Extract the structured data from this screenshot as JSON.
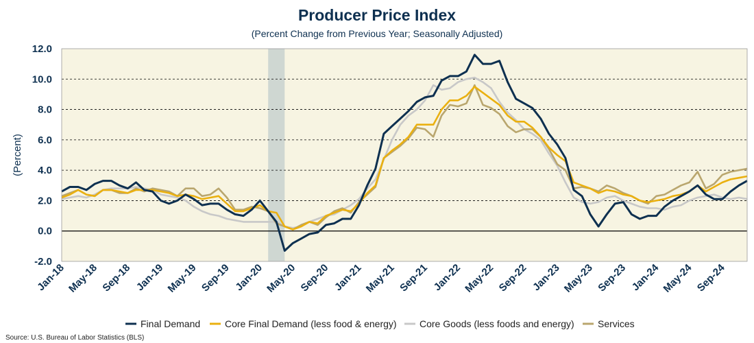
{
  "chart_data": {
    "type": "line",
    "title": "Producer Price Index",
    "subtitle": "(Percent Change from Previous Year; Seasonally Adjusted)",
    "ylabel": "(Percent)",
    "xlabel": "",
    "ylim": [
      -2.0,
      12.0
    ],
    "yticks": [
      "-2.0",
      "0.0",
      "2.0",
      "4.0",
      "6.0",
      "8.0",
      "10.0",
      "12.0"
    ],
    "x_start": "Jan-18",
    "x_end": "Dec-24",
    "xticks": [
      "Jan-18",
      "May-18",
      "Sep-18",
      "Jan-19",
      "May-19",
      "Sep-19",
      "Jan-20",
      "May-20",
      "Sep-20",
      "Jan-21",
      "May-21",
      "Sep-21",
      "Jan-22",
      "May-22",
      "Sep-22",
      "Jan-23",
      "May-23",
      "Sep-23",
      "Jan-24",
      "May-24",
      "Sep-24"
    ],
    "recession": {
      "start": "Feb-20",
      "end": "Apr-20"
    },
    "grid": "horizontal dashed",
    "legend_position": "bottom",
    "series": [
      {
        "name": "Final Demand",
        "color": "#0e3050",
        "values": [
          2.6,
          2.9,
          2.9,
          2.7,
          3.1,
          3.3,
          3.3,
          3.0,
          2.8,
          3.2,
          2.7,
          2.6,
          2.0,
          1.8,
          2.0,
          2.4,
          2.1,
          1.7,
          1.8,
          1.8,
          1.4,
          1.1,
          1.0,
          1.4,
          2.0,
          1.3,
          0.6,
          -1.3,
          -0.8,
          -0.5,
          -0.2,
          -0.1,
          0.4,
          0.5,
          0.8,
          0.8,
          1.7,
          3.0,
          4.1,
          6.4,
          6.9,
          7.4,
          7.9,
          8.5,
          8.8,
          8.9,
          9.9,
          10.2,
          10.2,
          10.5,
          11.6,
          11.0,
          11.0,
          11.2,
          9.8,
          8.7,
          8.4,
          8.1,
          7.4,
          6.4,
          5.7,
          4.8,
          2.7,
          2.3,
          1.1,
          0.3,
          1.1,
          1.8,
          1.9,
          1.1,
          0.8,
          1.0,
          1.0,
          1.6,
          2.0,
          2.3,
          2.6,
          3.0,
          2.4,
          2.1,
          2.1,
          2.6,
          3.0,
          3.3
        ]
      },
      {
        "name": "Core Final Demand (less food & energy)",
        "color": "#eab010",
        "values": [
          2.2,
          2.4,
          2.7,
          2.4,
          2.3,
          2.7,
          2.7,
          2.6,
          2.5,
          2.7,
          2.7,
          2.7,
          2.6,
          2.5,
          2.3,
          2.4,
          2.3,
          2.1,
          2.2,
          2.3,
          1.8,
          1.3,
          1.3,
          1.5,
          1.7,
          1.3,
          1.2,
          0.3,
          0.1,
          0.3,
          0.6,
          0.5,
          1.0,
          1.2,
          1.4,
          1.3,
          1.8,
          2.5,
          3.0,
          4.8,
          5.3,
          5.7,
          6.2,
          7.0,
          7.0,
          7.0,
          8.0,
          8.6,
          8.6,
          8.9,
          9.5,
          9.1,
          8.7,
          8.3,
          7.6,
          7.2,
          7.2,
          6.8,
          6.2,
          5.5,
          5.0,
          4.6,
          3.2,
          3.0,
          2.8,
          2.5,
          2.7,
          2.6,
          2.4,
          2.3,
          2.0,
          1.9,
          2.0,
          2.1,
          2.3,
          2.4,
          2.6,
          3.0,
          2.6,
          2.9,
          3.2,
          3.4,
          3.5,
          3.6
        ]
      },
      {
        "name": "Core Goods (less foods and energy)",
        "color": "#c8c8c8",
        "values": [
          2.1,
          2.2,
          2.3,
          2.2,
          2.4,
          2.7,
          2.8,
          2.8,
          2.8,
          2.9,
          2.8,
          2.7,
          2.4,
          2.3,
          2.2,
          2.0,
          1.6,
          1.3,
          1.1,
          1.0,
          0.8,
          0.7,
          0.6,
          0.6,
          0.6,
          0.6,
          0.6,
          0.3,
          0.2,
          0.3,
          0.6,
          0.8,
          1.0,
          1.1,
          1.4,
          1.7,
          2.1,
          2.8,
          3.4,
          4.7,
          6.0,
          7.0,
          7.6,
          8.0,
          8.6,
          9.6,
          9.3,
          9.4,
          9.8,
          10.0,
          10.1,
          9.8,
          9.4,
          8.5,
          7.8,
          7.3,
          6.7,
          6.4,
          6.0,
          5.1,
          4.3,
          3.2,
          2.2,
          1.9,
          1.8,
          1.9,
          2.2,
          2.3,
          2.0,
          1.8,
          1.6,
          1.5,
          1.5,
          1.4,
          1.6,
          1.7,
          2.0,
          2.2,
          2.3,
          2.4,
          2.2,
          2.1,
          2.2,
          2.1
        ]
      },
      {
        "name": "Services",
        "color": "#b9a66e",
        "values": [
          2.3,
          2.5,
          2.7,
          2.4,
          2.3,
          2.7,
          2.7,
          2.5,
          2.5,
          2.8,
          2.6,
          2.8,
          2.7,
          2.6,
          2.3,
          2.8,
          2.8,
          2.3,
          2.4,
          2.8,
          2.2,
          1.4,
          1.4,
          1.6,
          1.5,
          1.3,
          0.5,
          0.3,
          0.1,
          0.4,
          0.6,
          0.4,
          0.9,
          1.3,
          1.5,
          1.2,
          1.9,
          2.4,
          2.9,
          4.8,
          5.2,
          5.6,
          6.1,
          6.8,
          6.7,
          6.2,
          7.6,
          8.3,
          8.2,
          8.4,
          9.6,
          8.3,
          8.1,
          7.7,
          6.9,
          6.5,
          6.7,
          6.7,
          6.2,
          5.4,
          4.4,
          4.0,
          2.8,
          2.9,
          2.8,
          2.6,
          3.0,
          2.8,
          2.5,
          2.3,
          2.0,
          1.8,
          2.3,
          2.4,
          2.7,
          3.0,
          3.2,
          3.9,
          2.8,
          3.1,
          3.7,
          3.9,
          4.0,
          4.1
        ]
      }
    ],
    "source": "Source: U.S. Bureau of Labor Statistics (BLS)"
  }
}
